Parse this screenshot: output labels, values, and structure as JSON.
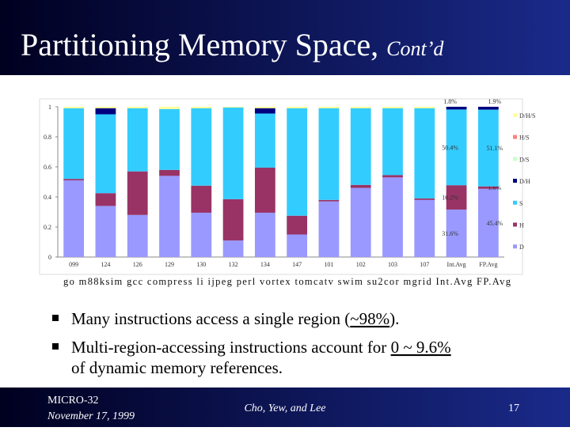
{
  "header": {
    "title": "Partitioning Memory Space,",
    "title_suffix": "Cont’d"
  },
  "chart_data": {
    "type": "stacked_bar",
    "categories": [
      "099",
      "124",
      "126",
      "129",
      "130",
      "132",
      "134",
      "147",
      "101",
      "102",
      "103",
      "107",
      "Int.Avg",
      "FP.Avg"
    ],
    "series": [
      {
        "name": "D",
        "color": "#9999ff",
        "values": [
          0.51,
          0.34,
          0.28,
          0.54,
          0.295,
          0.11,
          0.295,
          0.15,
          0.37,
          0.46,
          0.53,
          0.38,
          0.316,
          0.454
        ],
        "value_labels": [
          null,
          null,
          null,
          null,
          null,
          null,
          null,
          null,
          null,
          null,
          null,
          null,
          "31.6%",
          "45.4%"
        ]
      },
      {
        "name": "H",
        "color": "#993366",
        "values": [
          0.01,
          0.085,
          0.29,
          0.04,
          0.18,
          0.275,
          0.3,
          0.125,
          0.01,
          0.02,
          0.015,
          0.01,
          0.162,
          0.016
        ],
        "value_labels": [
          null,
          null,
          null,
          null,
          null,
          null,
          null,
          null,
          null,
          null,
          null,
          null,
          "16.2%",
          "1.6%"
        ]
      },
      {
        "name": "S",
        "color": "#33ccff",
        "values": [
          0.47,
          0.525,
          0.42,
          0.405,
          0.515,
          0.61,
          0.36,
          0.715,
          0.61,
          0.51,
          0.445,
          0.6,
          0.504,
          0.511
        ],
        "value_labels": [
          null,
          null,
          null,
          null,
          null,
          null,
          null,
          null,
          null,
          null,
          null,
          null,
          "50.4%",
          "51.1%"
        ]
      },
      {
        "name": "D/H",
        "color": "#000080",
        "values": [
          0,
          0.04,
          0,
          0,
          0,
          0,
          0.035,
          0,
          0,
          0,
          0,
          0,
          0.018,
          0.019
        ],
        "value_labels": [
          null,
          null,
          null,
          null,
          null,
          null,
          null,
          null,
          null,
          null,
          null,
          null,
          "1.8%",
          "1.9%"
        ]
      },
      {
        "name": "D/S",
        "color": "#ccffcc",
        "values": [
          0,
          0,
          0,
          0,
          0,
          0,
          0,
          0,
          0,
          0,
          0,
          0,
          0,
          0
        ]
      },
      {
        "name": "H/S",
        "color": "#ff8080",
        "values": [
          0,
          0,
          0,
          0,
          0,
          0,
          0,
          0,
          0,
          0,
          0,
          0,
          0,
          0
        ]
      },
      {
        "name": "D/H/S",
        "color": "#ffff99",
        "values": [
          0.01,
          0.01,
          0.01,
          0.015,
          0.01,
          0.005,
          0.01,
          0.01,
          0.01,
          0.01,
          0.01,
          0.01,
          0,
          0
        ]
      }
    ],
    "ylim": [
      0,
      1
    ],
    "yticks": [
      0,
      0.2,
      0.4,
      0.6,
      0.8,
      1
    ],
    "grid": false,
    "legend": "right"
  },
  "caption": "go m88ksim gcc compress li ijpeg perl vortex tomcatv swim su2cor mgrid Int.Avg FP.Avg",
  "bullets": [
    [
      "Many instructions access a single region (",
      "~98%",
      ")."
    ],
    [
      "Multi-region-accessing instructions account for ",
      "0 ~ 9.6%",
      "of dynamic memory references."
    ]
  ],
  "footer": {
    "venue": "MICRO-32",
    "date": "November 17, 1999",
    "authors": "Cho, Yew, and Lee",
    "page": "17"
  }
}
